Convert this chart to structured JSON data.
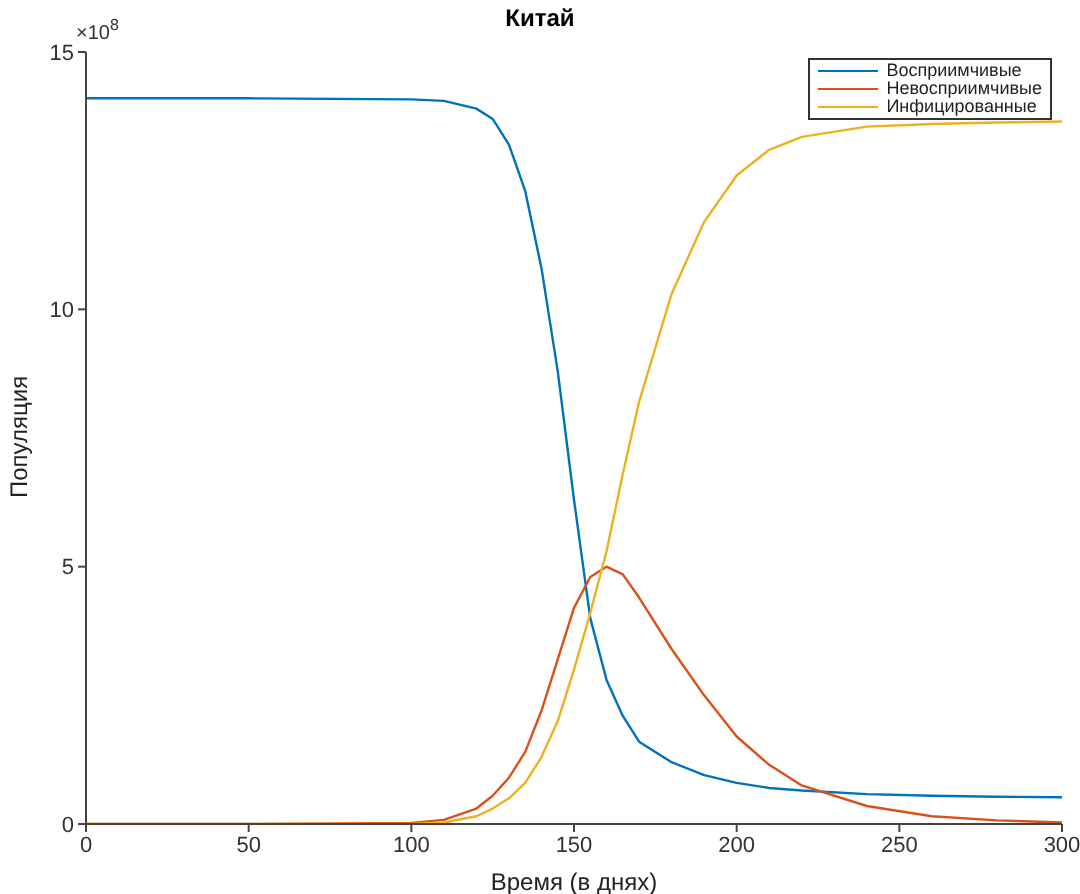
{
  "chart_data": {
    "type": "line",
    "title": "Китай",
    "xlabel": "Время (в днях)",
    "ylabel": "Популяция",
    "annotations": [
      "×10$^{8}$"
    ],
    "x": [
      0,
      50,
      100,
      110,
      120,
      125,
      130,
      135,
      140,
      145,
      150,
      155,
      160,
      165,
      170,
      180,
      190,
      200,
      210,
      220,
      240,
      260,
      280,
      300
    ],
    "series": [
      {
        "name": "Восприимчивые",
        "color": "#0072bd",
        "values": [
          14.1,
          14.1,
          14.08,
          14.05,
          13.9,
          13.7,
          13.2,
          12.3,
          10.8,
          8.8,
          6.3,
          4.0,
          2.8,
          2.1,
          1.6,
          1.2,
          0.95,
          0.8,
          0.7,
          0.65,
          0.58,
          0.55,
          0.53,
          0.52
        ]
      },
      {
        "name": "Невосприимчивые",
        "color": "#d95319",
        "values": [
          0,
          0,
          0.02,
          0.08,
          0.3,
          0.55,
          0.9,
          1.4,
          2.2,
          3.2,
          4.2,
          4.8,
          5.0,
          4.85,
          4.4,
          3.4,
          2.5,
          1.7,
          1.15,
          0.75,
          0.35,
          0.15,
          0.07,
          0.03
        ]
      },
      {
        "name": "Инфицированные",
        "color": "#edb120",
        "values": [
          0,
          0,
          0,
          0.03,
          0.15,
          0.3,
          0.5,
          0.8,
          1.3,
          2.0,
          3.0,
          4.1,
          5.3,
          6.8,
          8.2,
          10.3,
          11.7,
          12.6,
          13.1,
          13.35,
          13.55,
          13.6,
          13.63,
          13.65
        ]
      }
    ],
    "xlim": [
      0,
      300
    ],
    "xticks": [
      0,
      50,
      100,
      150,
      200,
      250,
      300
    ],
    "ylim": [
      0,
      15
    ],
    "yticks": [
      0,
      5,
      10,
      15
    ],
    "grid": false,
    "legend": "top right",
    "marker": "none",
    "line_style": "solid"
  }
}
